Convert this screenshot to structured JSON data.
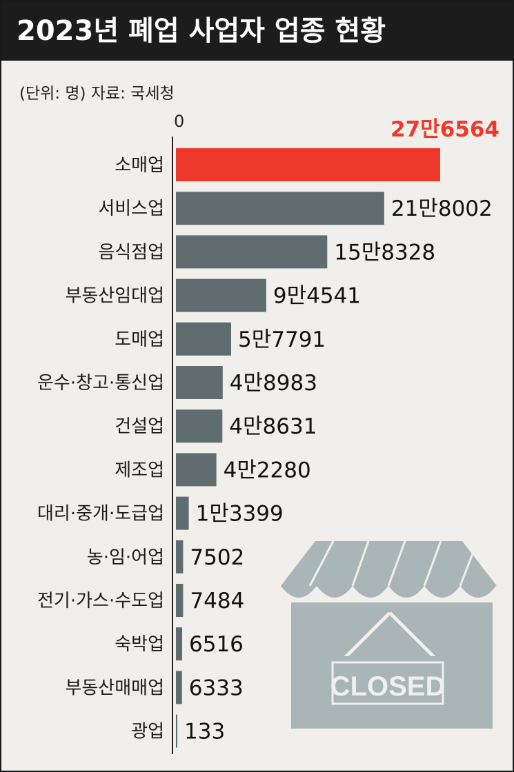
{
  "header": {
    "title": "2023년 폐업 사업자 업종 현황",
    "subtitle": "(단위: 명)  자료: 국세청"
  },
  "colors": {
    "highlight": "#ee3a2c",
    "bar": "#5f6d71",
    "axis": "#222222",
    "icon": "#a9b5b7"
  },
  "icon": {
    "name": "closed-store-icon",
    "sign_text": "CLOSED"
  },
  "chart_data": {
    "type": "bar",
    "orientation": "horizontal",
    "title": "2023년 폐업 사업자 업종 현황",
    "unit": "명",
    "xlim": [
      0,
      276564
    ],
    "zero_tick": "0",
    "categories": [
      "소매업",
      "서비스업",
      "음식점업",
      "부동산임대업",
      "도매업",
      "운수·창고·통신업",
      "건설업",
      "제조업",
      "대리·중개·도급업",
      "농·임·어업",
      "전기·가스·수도업",
      "숙박업",
      "부동산매매업",
      "광업"
    ],
    "values": [
      276564,
      218002,
      158328,
      94541,
      57791,
      48983,
      48631,
      42280,
      13399,
      7502,
      7484,
      6516,
      6333,
      133
    ],
    "labels": [
      "27만6564",
      "21만8002",
      "15만8328",
      "9만4541",
      "5만7791",
      "4만8983",
      "4만8631",
      "4만2280",
      "1만3399",
      "7502",
      "7484",
      "6516",
      "6333",
      "133"
    ],
    "highlight_index": 0,
    "legend": "none",
    "grid": false
  }
}
